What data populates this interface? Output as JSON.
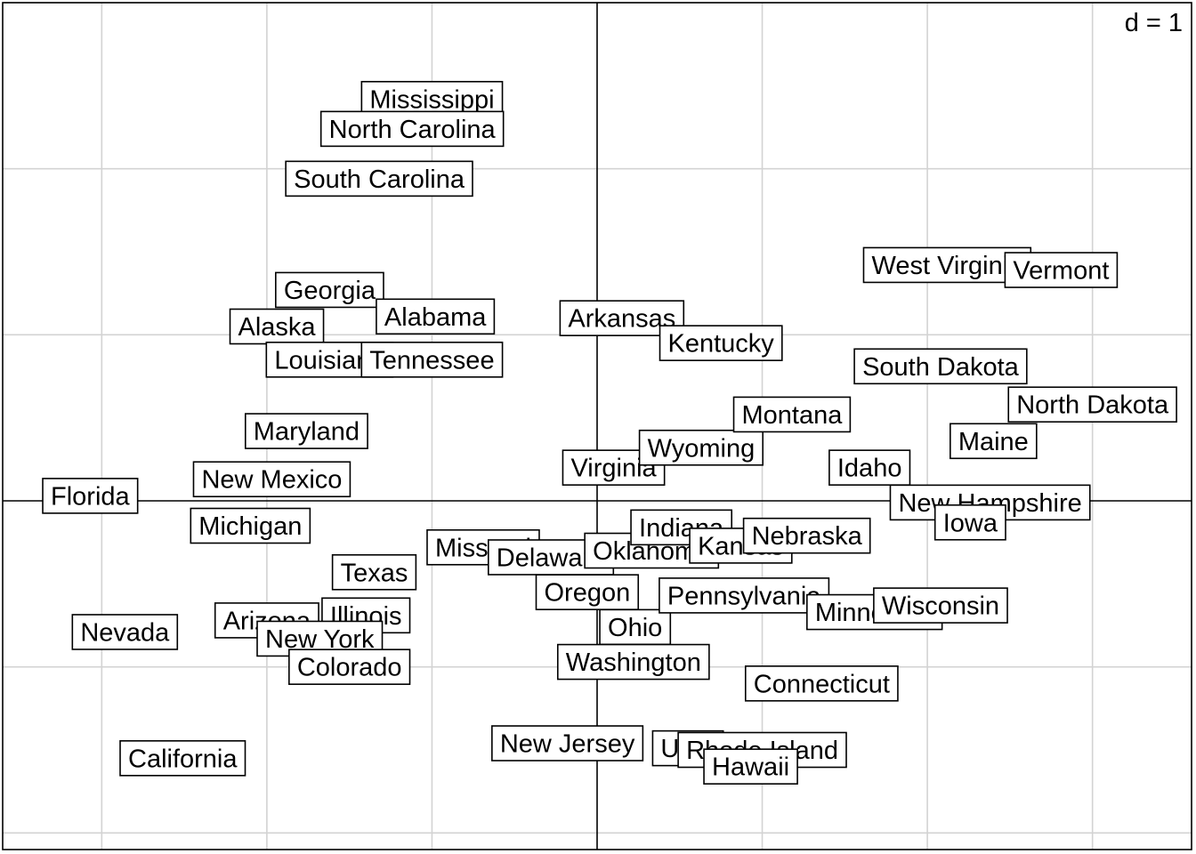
{
  "chart_data": {
    "type": "scatter",
    "scale_label": "d = 1",
    "grid": true,
    "xlim": [
      -3.6,
      3.6
    ],
    "ylim": [
      -2.1,
      3.0
    ],
    "points": [
      {
        "label": "Mississippi",
        "x": -1.0,
        "y": 2.42
      },
      {
        "label": "North Carolina",
        "x": -1.12,
        "y": 2.24
      },
      {
        "label": "South Carolina",
        "x": -1.32,
        "y": 1.94
      },
      {
        "label": "Georgia",
        "x": -1.62,
        "y": 1.27
      },
      {
        "label": "Alaska",
        "x": -1.94,
        "y": 1.05
      },
      {
        "label": "Alabama",
        "x": -0.98,
        "y": 1.11
      },
      {
        "label": "Louisiana",
        "x": -1.62,
        "y": 0.85
      },
      {
        "label": "Tennessee",
        "x": -1.0,
        "y": 0.85
      },
      {
        "label": "Maryland",
        "x": -1.76,
        "y": 0.42
      },
      {
        "label": "New Mexico",
        "x": -1.97,
        "y": 0.13
      },
      {
        "label": "Florida",
        "x": -3.07,
        "y": 0.03
      },
      {
        "label": "Michigan",
        "x": -2.1,
        "y": -0.15
      },
      {
        "label": "Texas",
        "x": -1.35,
        "y": -0.43
      },
      {
        "label": "Arizona",
        "x": -2.0,
        "y": -0.72
      },
      {
        "label": "Illinois",
        "x": -1.4,
        "y": -0.69
      },
      {
        "label": "New York",
        "x": -1.68,
        "y": -0.83
      },
      {
        "label": "Colorado",
        "x": -1.5,
        "y": -1.0
      },
      {
        "label": "Nevada",
        "x": -2.86,
        "y": -0.79
      },
      {
        "label": "California",
        "x": -2.51,
        "y": -1.55
      },
      {
        "label": "Missouri",
        "x": -0.69,
        "y": -0.28
      },
      {
        "label": "Delaware",
        "x": -0.28,
        "y": -0.34
      },
      {
        "label": "Oklahoma",
        "x": 0.33,
        "y": -0.3
      },
      {
        "label": "Oregon",
        "x": -0.06,
        "y": -0.55
      },
      {
        "label": "Ohio",
        "x": 0.23,
        "y": -0.76
      },
      {
        "label": "Washington",
        "x": 0.22,
        "y": -0.97
      },
      {
        "label": "New Jersey",
        "x": -0.18,
        "y": -1.46
      },
      {
        "label": "Utah",
        "x": 0.55,
        "y": -1.49
      },
      {
        "label": "Rhode Island",
        "x": 1.0,
        "y": -1.5
      },
      {
        "label": "Hawaii",
        "x": 0.93,
        "y": -1.6
      },
      {
        "label": "Arkansas",
        "x": 0.15,
        "y": 1.1
      },
      {
        "label": "Kentucky",
        "x": 0.75,
        "y": 0.95
      },
      {
        "label": "Virginia",
        "x": 0.1,
        "y": 0.2
      },
      {
        "label": "Wyoming",
        "x": 0.63,
        "y": 0.32
      },
      {
        "label": "Montana",
        "x": 1.18,
        "y": 0.52
      },
      {
        "label": "Indiana",
        "x": 0.51,
        "y": -0.16
      },
      {
        "label": "Kansas",
        "x": 0.87,
        "y": -0.27
      },
      {
        "label": "Nebraska",
        "x": 1.27,
        "y": -0.21
      },
      {
        "label": "Pennsylvania",
        "x": 0.89,
        "y": -0.57
      },
      {
        "label": "Minnesota",
        "x": 1.68,
        "y": -0.67
      },
      {
        "label": "Wisconsin",
        "x": 2.08,
        "y": -0.63
      },
      {
        "label": "Connecticut",
        "x": 1.36,
        "y": -1.1
      },
      {
        "label": "West Virginia",
        "x": 2.12,
        "y": 1.42
      },
      {
        "label": "Vermont",
        "x": 2.81,
        "y": 1.39
      },
      {
        "label": "South Dakota",
        "x": 2.08,
        "y": 0.81
      },
      {
        "label": "North Dakota",
        "x": 3.0,
        "y": 0.58
      },
      {
        "label": "Maine",
        "x": 2.4,
        "y": 0.36
      },
      {
        "label": "Idaho",
        "x": 1.65,
        "y": 0.2
      },
      {
        "label": "New Hampshire",
        "x": 2.38,
        "y": -0.01
      },
      {
        "label": "Iowa",
        "x": 2.26,
        "y": -0.13
      }
    ]
  }
}
